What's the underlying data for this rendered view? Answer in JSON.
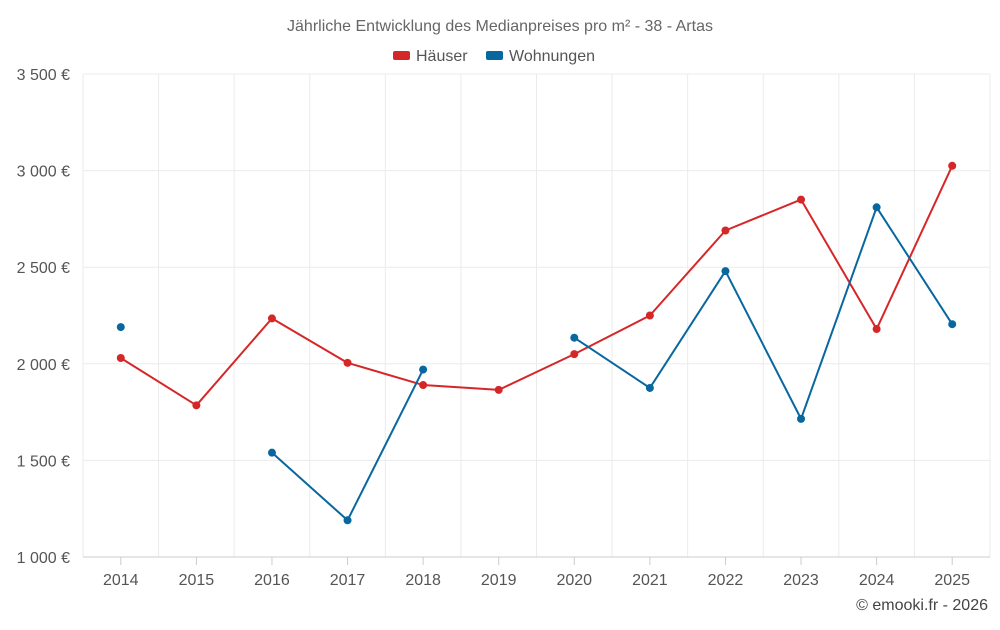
{
  "chart_data": {
    "type": "line",
    "title": "Jährliche Entwicklung des Medianpreises pro m² - 38 - Artas",
    "credit": "© emooki.fr - 2026",
    "categories": [
      "2014",
      "2015",
      "2016",
      "2017",
      "2018",
      "2019",
      "2020",
      "2021",
      "2022",
      "2023",
      "2024",
      "2025"
    ],
    "ylim": [
      1000,
      3500
    ],
    "yticks": [
      1000,
      1500,
      2000,
      2500,
      3000,
      3500
    ],
    "ytick_labels": [
      "1 000 €",
      "1 500 €",
      "2 000 €",
      "2 500 €",
      "3 000 €",
      "3 500 €"
    ],
    "grid": true,
    "legend_position": "top-center",
    "series": [
      {
        "name": "Häuser",
        "color": "#d62728",
        "values": [
          2030,
          1785,
          2235,
          2005,
          1890,
          1865,
          2050,
          2250,
          2690,
          2850,
          2180,
          3025
        ]
      },
      {
        "name": "Wohnungen",
        "color": "#08679e",
        "values": [
          2190,
          null,
          1540,
          1190,
          1970,
          null,
          2135,
          1875,
          2480,
          1715,
          2810,
          2205
        ]
      }
    ]
  }
}
